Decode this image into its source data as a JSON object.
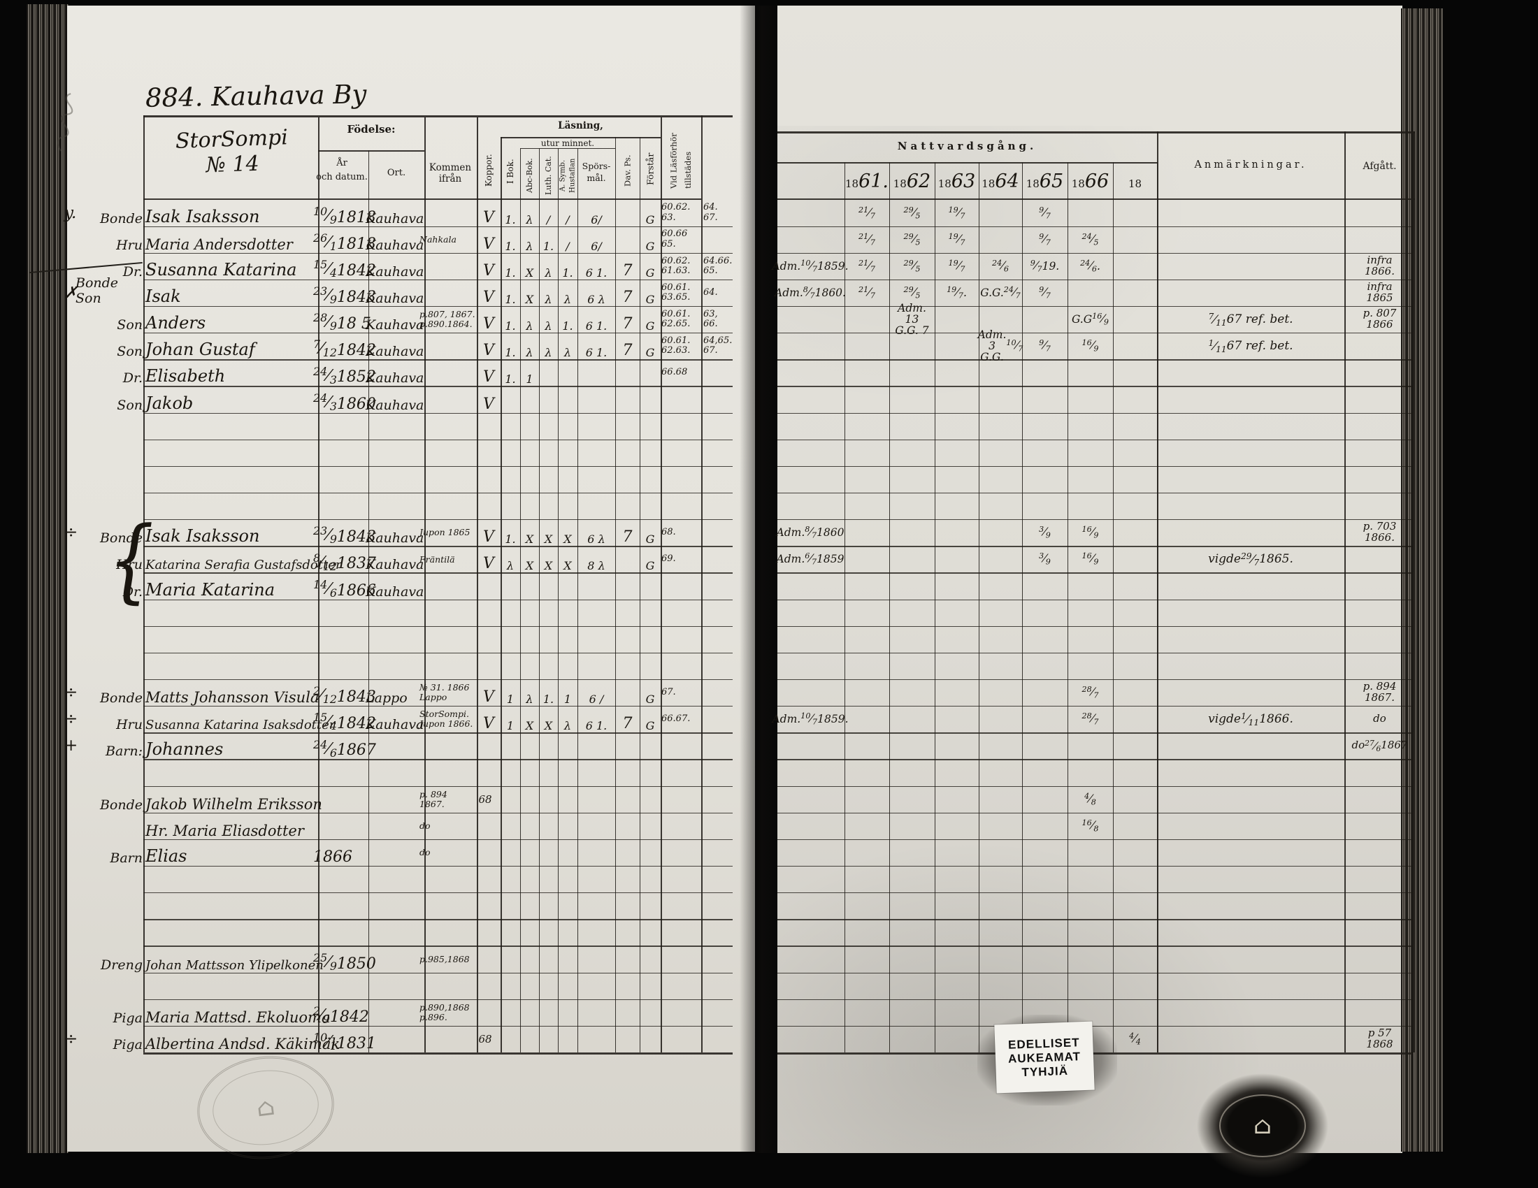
{
  "meta": {
    "page_title": "884. Kauhava By",
    "household_line1": "StorSompi",
    "household_line2": "№ 14",
    "brace": "{",
    "ink_color": "#1a1610",
    "paper_color": "#e6e4dd"
  },
  "left_table": {
    "headers": {
      "fodelse": "Födelse:",
      "ar": "År",
      "och_datum": "och datum.",
      "ort": "Ort.",
      "kommen": "Kommen ifrån",
      "koppor": "Koppor.",
      "lasning": "Läsning,",
      "utur_minnet": "utur minnet.",
      "i_bok": "I Bok.",
      "abc_bok": "Abc-Bok.",
      "luth_cat": "Luth. Cat.",
      "a_symb": "A. Symb.",
      "hustaflan": "Hustaflan",
      "spors1": "Spörs-",
      "spors2": "mål.",
      "dav_ps": "Dav. Ps.",
      "forstar": "Förstår",
      "vidlas1": "Vid Läsförhör",
      "vidlas2": "tillstädes"
    }
  },
  "right_table": {
    "title": "Nattvardsgång.",
    "year_prefix": "18",
    "years_hand": [
      "61.",
      "62",
      "63",
      "64",
      "65",
      "66",
      ""
    ],
    "anmarkningar": "Anmärkningar.",
    "afgatt": "Afgått."
  },
  "stamp": {
    "line1": "EDELLISET",
    "line2": "AUKEAMAT",
    "line3": "TYHJIÄ"
  },
  "rows": [
    {
      "m": "y.",
      "role": "Bonde",
      "name": "Isak Isaksson",
      "date": "10/9 1818",
      "ort": "Kauhava",
      "kop": "V",
      "mk": [
        "1.",
        "λ",
        "/",
        "/",
        "6/",
        "",
        "G"
      ],
      "vl": "60.62.\n63.",
      "vl2": "64.\n67.",
      "y": [
        "21/7",
        "29/5",
        "19/7",
        "",
        "9/7",
        "",
        ""
      ]
    },
    {
      "role": "Hru",
      "name": "Maria Andersdotter",
      "date": "26/1 1818",
      "ort": "Kauhava",
      "kom": "Nahkala",
      "kop": "V",
      "mk": [
        "1.",
        "λ",
        "1.",
        "/",
        "6/",
        "",
        "G"
      ],
      "vl": "60.66\n65.",
      "y": [
        "21/7",
        "29/5",
        "19/7",
        "",
        "9/7",
        "24/5",
        ""
      ]
    },
    {
      "m": "—",
      "role": "Dr.",
      "name": "Susanna Katarina",
      "date": "15/4 1842",
      "ort": "Kauhava",
      "kop": "V",
      "mk": [
        "1.",
        "X",
        "λ",
        "1.",
        "6 1.",
        "7",
        "G"
      ],
      "vl": "60.62.\n61.63.",
      "vl2": "64.66.\n65.",
      "adm": "Adm. 10/7 1859.",
      "y": [
        "21/7",
        "29/5",
        "19/7",
        "24/6",
        "9/7 19.",
        "24/6.",
        ""
      ],
      "af": "infra\n1866."
    },
    {
      "m": "✗",
      "role": "Bonde Son",
      "name": "Isak",
      "date": "23/9 1843",
      "ort": "Kauhava",
      "kop": "V",
      "mk": [
        "1.",
        "X",
        "λ",
        "λ",
        "6 λ",
        "7",
        "G"
      ],
      "vl": "60.61.\n63.65.",
      "vl2": "64.",
      "adm": "Adm. 8/7 1860.",
      "y": [
        "21/7",
        "29/5",
        "19/7.",
        "G.G.24/7",
        "9/7",
        "",
        ""
      ],
      "af": "infra\n1865"
    },
    {
      "role": "Son",
      "name": "Anders",
      "date": "28/9 18 5",
      "ort": "Kauhava",
      "kom": "p.807, 1867.\np.890.1864.",
      "kop": "V",
      "mk": [
        "1.",
        "λ",
        "λ",
        "1.",
        "6 1.",
        "7",
        "G"
      ],
      "vl": "60.61.\n62.65.",
      "vl2": "63,\n66.",
      "y": [
        "",
        "Adm. 13\nG.G. 7",
        "",
        "",
        "",
        "G.G 16/9",
        ""
      ],
      "anm": "7/11 67 ref. bet.",
      "af": "p. 807\n1866"
    },
    {
      "role": "Son",
      "name": "Johan Gustaf",
      "date": "7/12 1842",
      "ort": "Kauhava",
      "kop": "V",
      "mk": [
        "1.",
        "λ",
        "λ",
        "λ",
        "6 1.",
        "7",
        "G"
      ],
      "vl": "60.61.\n62.63.",
      "vl2": "64,65.\n67.",
      "y": [
        "",
        "",
        "",
        "Adm. 3\nG.G. 10/7",
        "9/7",
        "16/9",
        ""
      ],
      "anm": "1/11 67 ref. bet."
    },
    {
      "role": "Dr.",
      "name": "Elisabeth",
      "date": "24/3 1852",
      "ort": "Kauhava",
      "kop": "V",
      "mk": [
        "1.",
        "1",
        "",
        "",
        "",
        "",
        ""
      ],
      "vl": "66.68"
    },
    {
      "role": "Son",
      "name": "Jakob",
      "date": "24/3 1860",
      "ort": "Kauhava",
      "kop": "V"
    },
    {},
    {},
    {},
    {},
    {
      "m": "÷",
      "role": "Bonde",
      "name": "Isak Isaksson",
      "date": "23/9 1843",
      "ort": "Kauhava",
      "kom": "Jupon 1865",
      "kop": "V",
      "mk": [
        "1.",
        "X",
        "X",
        "X",
        "6 λ",
        "7",
        "G"
      ],
      "vl": "68.",
      "adm": "Adm. 8/7 1860",
      "y": [
        "",
        "",
        "",
        "",
        "3/9",
        "16/9",
        ""
      ],
      "af": "p. 703\n1866."
    },
    {
      "role": "Hru",
      "name": "Katarina Serafia Gustafsdotter",
      "date": "8/12 1837",
      "ort": "Kauhava",
      "kom": "Fräntilä",
      "kop": "V",
      "mk": [
        "λ",
        "X",
        "X",
        "X",
        "8 λ",
        "",
        "G"
      ],
      "vl": "69.",
      "adm": "Adm. 6/7 1859",
      "y": [
        "",
        "",
        "",
        "",
        "3/9",
        "16/9",
        ""
      ],
      "anm": "vigde 29/7 1865."
    },
    {
      "role": "Dr.",
      "name": "Maria Katarina",
      "date": "14/6 1866",
      "ort": "Kauhava"
    },
    {},
    {},
    {},
    {
      "m": "÷",
      "role": "Bonde",
      "name": "Matts Johansson Visula",
      "date": "2/12 1843",
      "ort": "Lappo",
      "kom": "№ 31. 1866\nLappo",
      "kop": "V",
      "mk": [
        "1",
        "λ",
        "1.",
        "1",
        "6 /",
        "",
        "G"
      ],
      "vl": "67.",
      "y": [
        "",
        "",
        "",
        "",
        "",
        "28/7",
        ""
      ],
      "af": "p. 894\n1867."
    },
    {
      "m": "÷",
      "role": "Hru",
      "name": "Susanna Katarina Isaksdotter",
      "date": "15/4 1842",
      "ort": "Kauhava",
      "kom": "StorSompi.\nJupon 1866.",
      "kop": "V",
      "mk": [
        "1",
        "X",
        "X",
        "λ",
        "6 1.",
        "7",
        "G"
      ],
      "vl": "66.67.",
      "adm": "Adm. 10/7 1859.",
      "y": [
        "",
        "",
        "",
        "",
        "",
        "28/7",
        ""
      ],
      "anm": "vigde 1/11 1866.",
      "af": "do"
    },
    {
      "m": "+",
      "role": "Barn:",
      "name": "Johannes",
      "date": "24/6 1867",
      "af": "do\n27/6 1867"
    },
    {},
    {
      "role": "Bonde",
      "name": "Jakob Wilhelm Eriksson",
      "kom": "p. 894\n1867.",
      "mid": "68",
      "y": [
        "",
        "",
        "",
        "",
        "",
        "4/8",
        ""
      ]
    },
    {
      "name": "Hr. Maria Eliasdotter",
      "kom": "do",
      "y": [
        "",
        "",
        "",
        "",
        "",
        "16/8",
        ""
      ]
    },
    {
      "role": "Barn",
      "name": "Elias",
      "date": "1866",
      "kom": "do"
    },
    {},
    {},
    {},
    {
      "role": "Dreng",
      "name": "Johan Mattsson Ylipelkonen",
      "date": "25/9 1850",
      "kom": "p.985,1868"
    },
    {},
    {
      "role": "Piga",
      "name": "Maria Mattsd. Ekoluoma",
      "date": "2/9 1842",
      "kom": "p.890,1868\np.896."
    },
    {
      "m": "÷",
      "role": "Piga",
      "name": "Albertina Andsd. Käkimäk",
      "date": "10/1 1831",
      "mid": "68",
      "y": [
        "",
        "",
        "",
        "",
        "",
        "",
        "4/4"
      ],
      "af": "p 57\n1868"
    }
  ]
}
